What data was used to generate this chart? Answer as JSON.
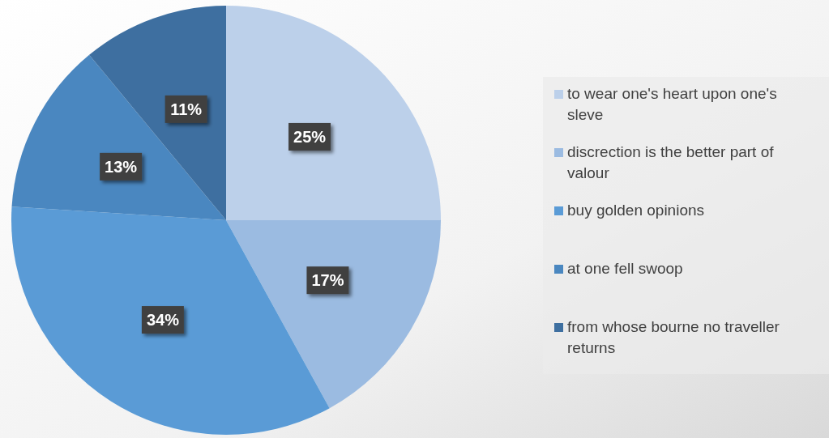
{
  "chart_data": {
    "type": "pie",
    "categories": [
      "to wear one's heart upon one's sleve",
      "discrection is the better part of valour",
      "buy golden opinions",
      "at one fell swoop",
      "from whose bourne no traveller returns"
    ],
    "values": [
      25,
      17,
      34,
      13,
      11
    ],
    "colors": [
      "#bcd0ea",
      "#9bbbe1",
      "#5a9bd6",
      "#4a87c0",
      "#3e6fa0"
    ],
    "value_labels": [
      "25%",
      "17%",
      "34%",
      "13%",
      "11%"
    ],
    "legend": "right"
  }
}
